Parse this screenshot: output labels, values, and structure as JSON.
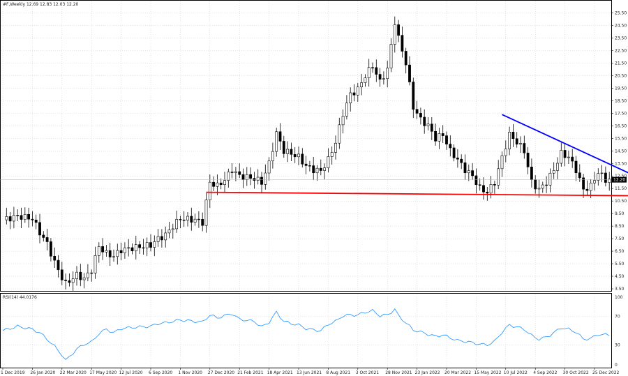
{
  "chart_data": [
    {
      "type": "candlestick",
      "header_text": "#F,Weekly  12.69 12.83 12.03 12.20",
      "y_ticks": [
        3.5,
        4.5,
        5.5,
        6.5,
        7.5,
        8.5,
        9.5,
        10.5,
        11.5,
        12.5,
        13.5,
        14.5,
        15.5,
        16.5,
        17.5,
        18.5,
        19.5,
        20.5,
        21.5,
        22.5,
        23.5,
        24.5,
        25.5
      ],
      "ylim": [
        3.5,
        26.2
      ],
      "current_price": 12.2,
      "x_labels": [
        "1 Dec 2019",
        "26 Jan 2020",
        "22 Mar 2020",
        "17 May 2020",
        "12 Jul 2020",
        "6 Sep 2020",
        "1 Nov 2020",
        "27 Dec 2020",
        "21 Feb 2021",
        "18 Apr 2021",
        "13 Jun 2021",
        "8 Aug 2021",
        "3 Oct 2021",
        "28 Nov 2021",
        "23 Jan 2022",
        "20 Mar 2022",
        "15 May 2022",
        "10 Jul 2022",
        "4 Sep 2022",
        "30 Oct 2022",
        "25 Dec 2022"
      ],
      "x_label_index": [
        0,
        8,
        16,
        24,
        32,
        40,
        48,
        56,
        64,
        72,
        80,
        88,
        96,
        104,
        112,
        120,
        128,
        136,
        144,
        152,
        160
      ],
      "bars_count": 165,
      "close_path": [
        [
          0,
          9.0
        ],
        [
          4,
          9.3
        ],
        [
          8,
          9.1
        ],
        [
          10,
          8.0
        ],
        [
          12,
          7.1
        ],
        [
          14,
          5.6
        ],
        [
          16,
          4.4
        ],
        [
          17,
          3.9
        ],
        [
          20,
          4.6
        ],
        [
          22,
          4.3
        ],
        [
          24,
          5.0
        ],
        [
          26,
          6.9
        ],
        [
          28,
          6.3
        ],
        [
          30,
          6.1
        ],
        [
          32,
          6.6
        ],
        [
          36,
          6.8
        ],
        [
          40,
          7.0
        ],
        [
          42,
          7.5
        ],
        [
          44,
          7.8
        ],
        [
          46,
          8.5
        ],
        [
          48,
          9.1
        ],
        [
          52,
          9.0
        ],
        [
          54,
          8.8
        ],
        [
          56,
          12.0
        ],
        [
          58,
          11.7
        ],
        [
          60,
          12.2
        ],
        [
          62,
          13.0
        ],
        [
          64,
          12.5
        ],
        [
          68,
          12.3
        ],
        [
          70,
          12.0
        ],
        [
          72,
          13.5
        ],
        [
          74,
          15.9
        ],
        [
          76,
          14.5
        ],
        [
          78,
          14.3
        ],
        [
          80,
          14.0
        ],
        [
          82,
          13.3
        ],
        [
          84,
          13.0
        ],
        [
          86,
          12.9
        ],
        [
          88,
          13.8
        ],
        [
          90,
          15.2
        ],
        [
          92,
          17.5
        ],
        [
          94,
          19.0
        ],
        [
          96,
          19.4
        ],
        [
          98,
          20.5
        ],
        [
          100,
          21.3
        ],
        [
          102,
          20.0
        ],
        [
          104,
          21.0
        ],
        [
          106,
          24.8
        ],
        [
          107,
          23.5
        ],
        [
          109,
          21.5
        ],
        [
          111,
          18.0
        ],
        [
          113,
          17.0
        ],
        [
          115,
          16.5
        ],
        [
          117,
          15.5
        ],
        [
          119,
          15.8
        ],
        [
          121,
          14.5
        ],
        [
          123,
          13.8
        ],
        [
          125,
          13.0
        ],
        [
          127,
          12.5
        ],
        [
          129,
          11.5
        ],
        [
          131,
          11.2
        ],
        [
          133,
          12.0
        ],
        [
          135,
          14.0
        ],
        [
          137,
          15.8
        ],
        [
          139,
          15.2
        ],
        [
          141,
          14.5
        ],
        [
          143,
          12.0
        ],
        [
          145,
          11.4
        ],
        [
          147,
          12.0
        ],
        [
          149,
          13.0
        ],
        [
          151,
          14.3
        ],
        [
          153,
          14.0
        ],
        [
          155,
          13.0
        ],
        [
          157,
          11.4
        ],
        [
          159,
          11.7
        ],
        [
          161,
          12.8
        ],
        [
          163,
          12.2
        ]
      ],
      "red_line": {
        "start_index": 55,
        "start": 11.2,
        "end_index": 180,
        "end": 10.9,
        "color": "#ff0000"
      },
      "blue_line": {
        "start_index": 135,
        "start": 17.4,
        "end_index": 171,
        "end": 12.5,
        "color": "#0000ff"
      },
      "colors": {
        "bull": "#ffffff",
        "bear": "#000000",
        "wick": "#000000",
        "grid": "#c8c8c8"
      }
    },
    {
      "type": "line",
      "header_text": "RSI(14) 44.0176",
      "y_ticks": [
        0,
        30,
        70,
        100
      ],
      "ylim": [
        0,
        100
      ],
      "color": "#1e90ff",
      "values_path": [
        [
          0,
          50
        ],
        [
          4,
          56
        ],
        [
          8,
          52
        ],
        [
          10,
          47
        ],
        [
          12,
          38
        ],
        [
          14,
          28
        ],
        [
          16,
          16
        ],
        [
          17,
          8
        ],
        [
          20,
          24
        ],
        [
          22,
          31
        ],
        [
          24,
          34
        ],
        [
          26,
          46
        ],
        [
          28,
          52
        ],
        [
          30,
          47
        ],
        [
          32,
          53
        ],
        [
          36,
          55
        ],
        [
          40,
          56
        ],
        [
          42,
          60
        ],
        [
          44,
          61
        ],
        [
          46,
          63
        ],
        [
          48,
          65
        ],
        [
          52,
          63
        ],
        [
          54,
          62
        ],
        [
          56,
          72
        ],
        [
          58,
          68
        ],
        [
          60,
          71
        ],
        [
          62,
          74
        ],
        [
          64,
          66
        ],
        [
          68,
          63
        ],
        [
          70,
          55
        ],
        [
          72,
          62
        ],
        [
          74,
          76
        ],
        [
          76,
          63
        ],
        [
          78,
          60
        ],
        [
          80,
          58
        ],
        [
          82,
          53
        ],
        [
          84,
          51
        ],
        [
          86,
          50
        ],
        [
          88,
          59
        ],
        [
          90,
          63
        ],
        [
          92,
          71
        ],
        [
          94,
          72
        ],
        [
          96,
          72
        ],
        [
          98,
          76
        ],
        [
          100,
          78
        ],
        [
          102,
          71
        ],
        [
          104,
          72
        ],
        [
          106,
          80
        ],
        [
          107,
          71
        ],
        [
          109,
          61
        ],
        [
          111,
          51
        ],
        [
          113,
          48
        ],
        [
          115,
          45
        ],
        [
          117,
          42
        ],
        [
          119,
          44
        ],
        [
          121,
          40
        ],
        [
          123,
          36
        ],
        [
          125,
          35
        ],
        [
          127,
          33
        ],
        [
          129,
          31
        ],
        [
          131,
          30
        ],
        [
          133,
          35
        ],
        [
          135,
          48
        ],
        [
          137,
          58
        ],
        [
          139,
          55
        ],
        [
          141,
          52
        ],
        [
          143,
          43
        ],
        [
          145,
          38
        ],
        [
          147,
          41
        ],
        [
          149,
          47
        ],
        [
          151,
          54
        ],
        [
          153,
          52
        ],
        [
          155,
          48
        ],
        [
          157,
          38
        ],
        [
          159,
          39
        ],
        [
          161,
          45
        ],
        [
          163,
          44
        ]
      ]
    }
  ]
}
